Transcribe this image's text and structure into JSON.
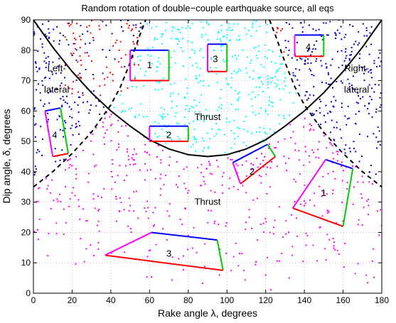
{
  "chart_data": {
    "type": "scatter",
    "title": "Random rotation of double−couple earthquake source, all eqs",
    "xlabel": "Rake angle λ, degrees",
    "ylabel": "Dip angle, δ, degrees",
    "xlim": [
      0,
      180
    ],
    "ylim": [
      0,
      90
    ],
    "xticks": [
      0,
      20,
      40,
      60,
      80,
      100,
      120,
      140,
      160,
      180
    ],
    "yticks": [
      0,
      10,
      20,
      30,
      40,
      50,
      60,
      70,
      80,
      90
    ],
    "grid": true,
    "series_colors": {
      "normal_thrust_region": "#ff00ff",
      "thrust_upper_region": "#00ffff",
      "left_lateral_strike_slip": "#0000cc",
      "right_lateral_strike_slip": "#ff0000"
    },
    "boundaries": {
      "solid_curve": [
        [
          0,
          90
        ],
        [
          10,
          81
        ],
        [
          20,
          73
        ],
        [
          30,
          66
        ],
        [
          40,
          60
        ],
        [
          50,
          55
        ],
        [
          60,
          50.5
        ],
        [
          70,
          47.5
        ],
        [
          80,
          45.6
        ],
        [
          90,
          45
        ],
        [
          100,
          45.6
        ],
        [
          110,
          47.5
        ],
        [
          120,
          50.5
        ],
        [
          130,
          55
        ],
        [
          140,
          60
        ],
        [
          150,
          66
        ],
        [
          160,
          73
        ],
        [
          170,
          81
        ],
        [
          180,
          90
        ]
      ],
      "dashed_left": [
        [
          0,
          35
        ],
        [
          10,
          40
        ],
        [
          20,
          46
        ],
        [
          30,
          53
        ],
        [
          40,
          62
        ],
        [
          45,
          68
        ],
        [
          50,
          76
        ],
        [
          55,
          85
        ],
        [
          58,
          90
        ]
      ],
      "dashed_right": [
        [
          122,
          90
        ],
        [
          125,
          85
        ],
        [
          130,
          76
        ],
        [
          135,
          68
        ],
        [
          140,
          62
        ],
        [
          150,
          53
        ],
        [
          160,
          46
        ],
        [
          170,
          40
        ],
        [
          180,
          35
        ]
      ]
    },
    "annotations": [
      {
        "text": "Left-",
        "x": 12,
        "y": 74
      },
      {
        "text": "lateral",
        "x": 12,
        "y": 67
      },
      {
        "text": "Right-",
        "x": 167,
        "y": 74
      },
      {
        "text": "lateral",
        "x": 167,
        "y": 67
      },
      {
        "text": "Thrust",
        "x": 90,
        "y": 58
      },
      {
        "text": "Thrust",
        "x": 90,
        "y": 30
      },
      {
        "text": "1",
        "x": 60,
        "y": 75
      },
      {
        "text": "3",
        "x": 94,
        "y": 77
      },
      {
        "text": "4",
        "x": 142,
        "y": 81
      },
      {
        "text": "2",
        "x": 70,
        "y": 52
      },
      {
        "text": "4",
        "x": 11,
        "y": 52
      },
      {
        "text": "2",
        "x": 113,
        "y": 40
      },
      {
        "text": "1",
        "x": 150,
        "y": 33
      },
      {
        "text": "3",
        "x": 70,
        "y": 13
      }
    ],
    "regions": [
      {
        "id": "1",
        "quad": [
          [
            50,
            80
          ],
          [
            70,
            80
          ],
          [
            70,
            70
          ],
          [
            50,
            70
          ]
        ]
      },
      {
        "id": "3",
        "quad": [
          [
            90,
            82
          ],
          [
            100,
            82
          ],
          [
            100,
            73
          ],
          [
            90,
            73
          ]
        ]
      },
      {
        "id": "4",
        "quad": [
          [
            135,
            85
          ],
          [
            150,
            85
          ],
          [
            150,
            78
          ],
          [
            135,
            78
          ]
        ]
      },
      {
        "id": "2",
        "quad": [
          [
            60,
            55
          ],
          [
            80,
            55
          ],
          [
            80,
            50
          ],
          [
            60,
            50
          ]
        ]
      },
      {
        "id": "4",
        "quad": [
          [
            6,
            60
          ],
          [
            14,
            61
          ],
          [
            18,
            46
          ],
          [
            10,
            45
          ]
        ]
      },
      {
        "id": "2",
        "quad": [
          [
            103,
            43
          ],
          [
            121,
            49
          ],
          [
            125,
            45
          ],
          [
            107,
            36
          ]
        ]
      },
      {
        "id": "1",
        "quad": [
          [
            151,
            44
          ],
          [
            165,
            41
          ],
          [
            160,
            22
          ],
          [
            134,
            28
          ]
        ]
      },
      {
        "id": "3",
        "quad": [
          [
            61,
            20
          ],
          [
            95,
            17.5
          ],
          [
            98,
            7.5
          ],
          [
            37,
            12.5
          ]
        ]
      }
    ]
  }
}
